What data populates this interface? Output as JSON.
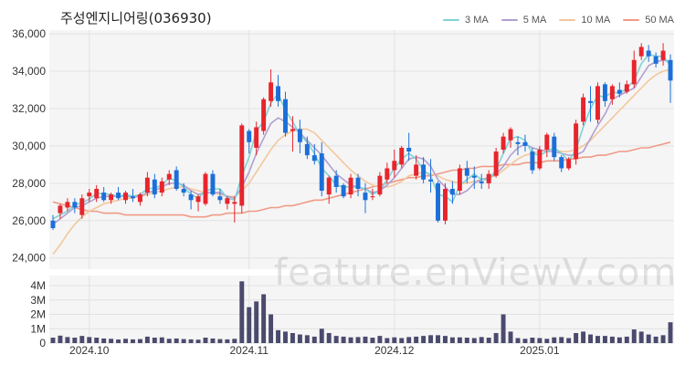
{
  "chart_data": {
    "type": "candlestick",
    "title": "주성엔지니어링(036930)",
    "watermark": "feature.enViewV.com",
    "colors": {
      "up": "#e8242c",
      "down": "#1c6fd8",
      "volume": "#4b4a6e",
      "ma3": "#7fd3d6",
      "ma5": "#b0a0d2",
      "ma10": "#f3c79b",
      "ma50": "#f09a86",
      "plot_bg": "#f5f5f5",
      "grid": "#e2e2e2"
    },
    "legend": [
      {
        "label": "3 MA",
        "color": "#7fd3d6"
      },
      {
        "label": "5 MA",
        "color": "#b0a0d2"
      },
      {
        "label": "10 MA",
        "color": "#f3c79b"
      },
      {
        "label": "50 MA",
        "color": "#f09a86"
      }
    ],
    "price_axis": {
      "ylim": [
        23400,
        36200
      ],
      "ticks": [
        24000,
        26000,
        28000,
        30000,
        32000,
        34000,
        36000
      ],
      "tick_labels": [
        "24,000",
        "26,000",
        "28,000",
        "30,000",
        "32,000",
        "34,000",
        "36,000"
      ]
    },
    "volume_axis": {
      "ylim": [
        0,
        4700000
      ],
      "ticks": [
        0,
        1000000,
        2000000,
        3000000,
        4000000
      ],
      "tick_labels": [
        "0",
        "1M",
        "2M",
        "3M",
        "4M"
      ]
    },
    "x_labels": [
      {
        "index": 5,
        "label": "2024.10"
      },
      {
        "index": 27,
        "label": "2024.11"
      },
      {
        "index": 47,
        "label": "2024.12"
      },
      {
        "index": 67,
        "label": "2025.01"
      }
    ],
    "candles": [
      [
        26000,
        26300,
        25500,
        25600,
        380000
      ],
      [
        26400,
        26900,
        26100,
        26800,
        520000
      ],
      [
        26700,
        27200,
        26500,
        27000,
        420000
      ],
      [
        27000,
        27200,
        26400,
        26700,
        380000
      ],
      [
        26300,
        27400,
        26100,
        27200,
        500000
      ],
      [
        27300,
        27700,
        27000,
        27500,
        420000
      ],
      [
        27200,
        27900,
        27000,
        27700,
        380000
      ],
      [
        27500,
        27800,
        27000,
        27100,
        320000
      ],
      [
        27100,
        27500,
        26900,
        27400,
        300000
      ],
      [
        27500,
        27800,
        27100,
        27200,
        250000
      ],
      [
        27100,
        27600,
        26900,
        27500,
        300000
      ],
      [
        27300,
        27700,
        27000,
        27200,
        260000
      ],
      [
        27000,
        27500,
        26800,
        27400,
        280000
      ],
      [
        27500,
        28600,
        27300,
        28300,
        450000
      ],
      [
        28200,
        28500,
        27200,
        27400,
        380000
      ],
      [
        27500,
        28300,
        27300,
        28100,
        400000
      ],
      [
        28200,
        28700,
        27900,
        28500,
        300000
      ],
      [
        28700,
        28900,
        27600,
        27700,
        320000
      ],
      [
        27700,
        28000,
        27300,
        27500,
        280000
      ],
      [
        27400,
        27600,
        26600,
        27100,
        260000
      ],
      [
        27000,
        27400,
        26500,
        27300,
        240000
      ],
      [
        26900,
        28600,
        26800,
        28500,
        380000
      ],
      [
        28500,
        28700,
        27300,
        27400,
        320000
      ],
      [
        27300,
        27700,
        26900,
        27100,
        280000
      ],
      [
        26900,
        27300,
        26600,
        27200,
        260000
      ],
      [
        26900,
        27300,
        25900,
        27000,
        300000
      ],
      [
        26800,
        31200,
        26400,
        31100,
        4300000
      ],
      [
        30800,
        30900,
        29600,
        30200,
        2500000
      ],
      [
        29900,
        31300,
        29500,
        31000,
        2900000
      ],
      [
        30800,
        32600,
        30600,
        32500,
        3400000
      ],
      [
        32400,
        34100,
        32100,
        33400,
        2000000
      ],
      [
        33200,
        33800,
        32100,
        32400,
        900000
      ],
      [
        32500,
        32900,
        30500,
        30700,
        800000
      ],
      [
        30800,
        31600,
        29700,
        30900,
        700000
      ],
      [
        30900,
        31400,
        29600,
        30200,
        600000
      ],
      [
        30100,
        30500,
        29300,
        29500,
        550000
      ],
      [
        29500,
        30100,
        29000,
        29200,
        450000
      ],
      [
        29600,
        30200,
        27300,
        27600,
        1000000
      ],
      [
        27400,
        28400,
        26900,
        28300,
        700000
      ],
      [
        28400,
        28700,
        27500,
        27800,
        500000
      ],
      [
        27900,
        28000,
        27200,
        27300,
        450000
      ],
      [
        27400,
        28500,
        27200,
        28300,
        400000
      ],
      [
        28300,
        28500,
        27300,
        27700,
        420000
      ],
      [
        27500,
        28000,
        26400,
        27100,
        450000
      ],
      [
        27300,
        27700,
        27100,
        27300,
        380000
      ],
      [
        27400,
        28600,
        27300,
        28400,
        500000
      ],
      [
        28200,
        29100,
        28000,
        28800,
        350000
      ],
      [
        28700,
        29800,
        28300,
        29200,
        400000
      ],
      [
        29000,
        30000,
        28800,
        29900,
        350000
      ],
      [
        29900,
        30700,
        29200,
        29700,
        420000
      ],
      [
        28400,
        29500,
        28200,
        29000,
        450000
      ],
      [
        29000,
        29400,
        28000,
        28200,
        500000
      ],
      [
        28200,
        29300,
        27500,
        28100,
        550000
      ],
      [
        28000,
        28100,
        25900,
        26000,
        550000
      ],
      [
        26000,
        28000,
        25800,
        27700,
        500000
      ],
      [
        27700,
        28100,
        26900,
        27400,
        400000
      ],
      [
        27600,
        29000,
        27400,
        28800,
        400000
      ],
      [
        28800,
        29200,
        28000,
        28400,
        380000
      ],
      [
        28400,
        28900,
        27700,
        28300,
        350000
      ],
      [
        28100,
        28500,
        27700,
        28000,
        420000
      ],
      [
        28000,
        28700,
        27700,
        28500,
        380000
      ],
      [
        28400,
        29900,
        28300,
        29700,
        700000
      ],
      [
        29800,
        30700,
        29600,
        30500,
        2000000
      ],
      [
        30300,
        31000,
        29900,
        30900,
        800000
      ],
      [
        30200,
        30500,
        29500,
        30100,
        350000
      ],
      [
        30200,
        30600,
        29700,
        30000,
        300000
      ],
      [
        29700,
        29900,
        28500,
        28700,
        380000
      ],
      [
        28800,
        30000,
        28700,
        29800,
        350000
      ],
      [
        29800,
        30700,
        29400,
        30600,
        300000
      ],
      [
        30500,
        30700,
        29200,
        29400,
        400000
      ],
      [
        29400,
        29500,
        28600,
        28800,
        420000
      ],
      [
        28800,
        29400,
        28700,
        29300,
        350000
      ],
      [
        29300,
        31400,
        29000,
        31200,
        700000
      ],
      [
        31300,
        32800,
        31100,
        32600,
        800000
      ],
      [
        32400,
        33200,
        31300,
        32300,
        600000
      ],
      [
        31400,
        33400,
        31200,
        33200,
        500000
      ],
      [
        33300,
        33400,
        32100,
        32400,
        500000
      ],
      [
        32500,
        33300,
        32200,
        33200,
        450000
      ],
      [
        33000,
        33400,
        32600,
        32800,
        400000
      ],
      [
        32900,
        33500,
        32800,
        33300,
        450000
      ],
      [
        33300,
        35100,
        33100,
        34600,
        950000
      ],
      [
        34800,
        35500,
        34600,
        35300,
        800000
      ],
      [
        35100,
        35400,
        34500,
        34800,
        600000
      ],
      [
        34800,
        35000,
        34200,
        34400,
        450000
      ],
      [
        34600,
        35500,
        34300,
        35100,
        550000
      ],
      [
        34600,
        34900,
        32300,
        33500,
        1450000
      ]
    ],
    "moving_averages": {
      "ma3": [
        26100,
        26300,
        26500,
        26850,
        26950,
        27150,
        27450,
        27450,
        27400,
        27300,
        27400,
        27300,
        27400,
        27700,
        27750,
        27900,
        28300,
        28100,
        27800,
        27400,
        27200,
        27600,
        27700,
        27700,
        27200,
        27100,
        28400,
        29400,
        30800,
        31300,
        32300,
        32800,
        31900,
        31300,
        30600,
        30200,
        29600,
        28800,
        28400,
        27900,
        27800,
        27800,
        27800,
        27700,
        27400,
        27600,
        28200,
        28800,
        29300,
        29600,
        29300,
        28700,
        28400,
        27400,
        27300,
        27000,
        27900,
        28200,
        28500,
        28200,
        28200,
        28700,
        29600,
        30400,
        30500,
        30300,
        29600,
        29500,
        29700,
        29900,
        29600,
        29200,
        29800,
        31000,
        32000,
        32700,
        32600,
        32900,
        32800,
        33100,
        33500,
        34400,
        34900,
        34800,
        34800,
        34300
      ],
      "ma5": [
        25800,
        26100,
        26400,
        26700,
        26800,
        27000,
        27200,
        27300,
        27300,
        27300,
        27300,
        27300,
        27300,
        27500,
        27600,
        27800,
        28000,
        28000,
        27900,
        27600,
        27400,
        27500,
        27500,
        27500,
        27300,
        27200,
        27800,
        28600,
        29600,
        30400,
        31200,
        31500,
        31300,
        31000,
        30700,
        30300,
        29900,
        29500,
        29000,
        28500,
        28200,
        27900,
        27800,
        27700,
        27500,
        27600,
        27900,
        28300,
        28800,
        29300,
        29400,
        29300,
        28900,
        28200,
        27800,
        27400,
        27400,
        27600,
        28000,
        28200,
        28300,
        28500,
        28900,
        29500,
        29900,
        30100,
        29900,
        29800,
        29700,
        29700,
        29600,
        29500,
        29500,
        29700,
        30400,
        31100,
        31700,
        32500,
        32700,
        32900,
        33100,
        33700,
        34300,
        34500,
        34600,
        34500
      ],
      "ma10": [
        24200,
        24700,
        25300,
        25800,
        26200,
        26500,
        26700,
        26900,
        27000,
        27100,
        27200,
        27200,
        27300,
        27400,
        27500,
        27600,
        27700,
        27800,
        27800,
        27700,
        27600,
        27500,
        27500,
        27400,
        27300,
        27300,
        27600,
        28000,
        28600,
        29200,
        29800,
        30300,
        30600,
        30800,
        30900,
        30900,
        30700,
        30300,
        29900,
        29500,
        29100,
        28700,
        28400,
        28100,
        27900,
        27800,
        27800,
        27900,
        28100,
        28400,
        28500,
        28600,
        28500,
        28400,
        28200,
        28100,
        28000,
        28000,
        28100,
        28200,
        28300,
        28400,
        28700,
        29000,
        29300,
        29500,
        29600,
        29700,
        29800,
        29800,
        29700,
        29700,
        29800,
        30000,
        30300,
        30700,
        31100,
        31500,
        31900,
        32300,
        32700,
        33100,
        33500,
        33800,
        34000,
        34100
      ],
      "ma50": [
        27000,
        26900,
        26800,
        26700,
        26600,
        26500,
        26500,
        26400,
        26400,
        26400,
        26300,
        26300,
        26300,
        26300,
        26300,
        26300,
        26300,
        26300,
        26300,
        26200,
        26200,
        26200,
        26300,
        26300,
        26400,
        26400,
        26400,
        26500,
        26500,
        26600,
        26700,
        26700,
        26800,
        26800,
        26900,
        27000,
        27100,
        27100,
        27200,
        27300,
        27400,
        27500,
        27600,
        27700,
        27800,
        27900,
        28000,
        28100,
        28200,
        28300,
        28300,
        28400,
        28400,
        28500,
        28600,
        28700,
        28700,
        28800,
        28800,
        28900,
        28900,
        28900,
        29000,
        29000,
        29000,
        29100,
        29100,
        29100,
        29200,
        29200,
        29200,
        29300,
        29300,
        29400,
        29400,
        29500,
        29500,
        29600,
        29700,
        29700,
        29800,
        29900,
        29900,
        30000,
        30100,
        30200
      ]
    }
  }
}
